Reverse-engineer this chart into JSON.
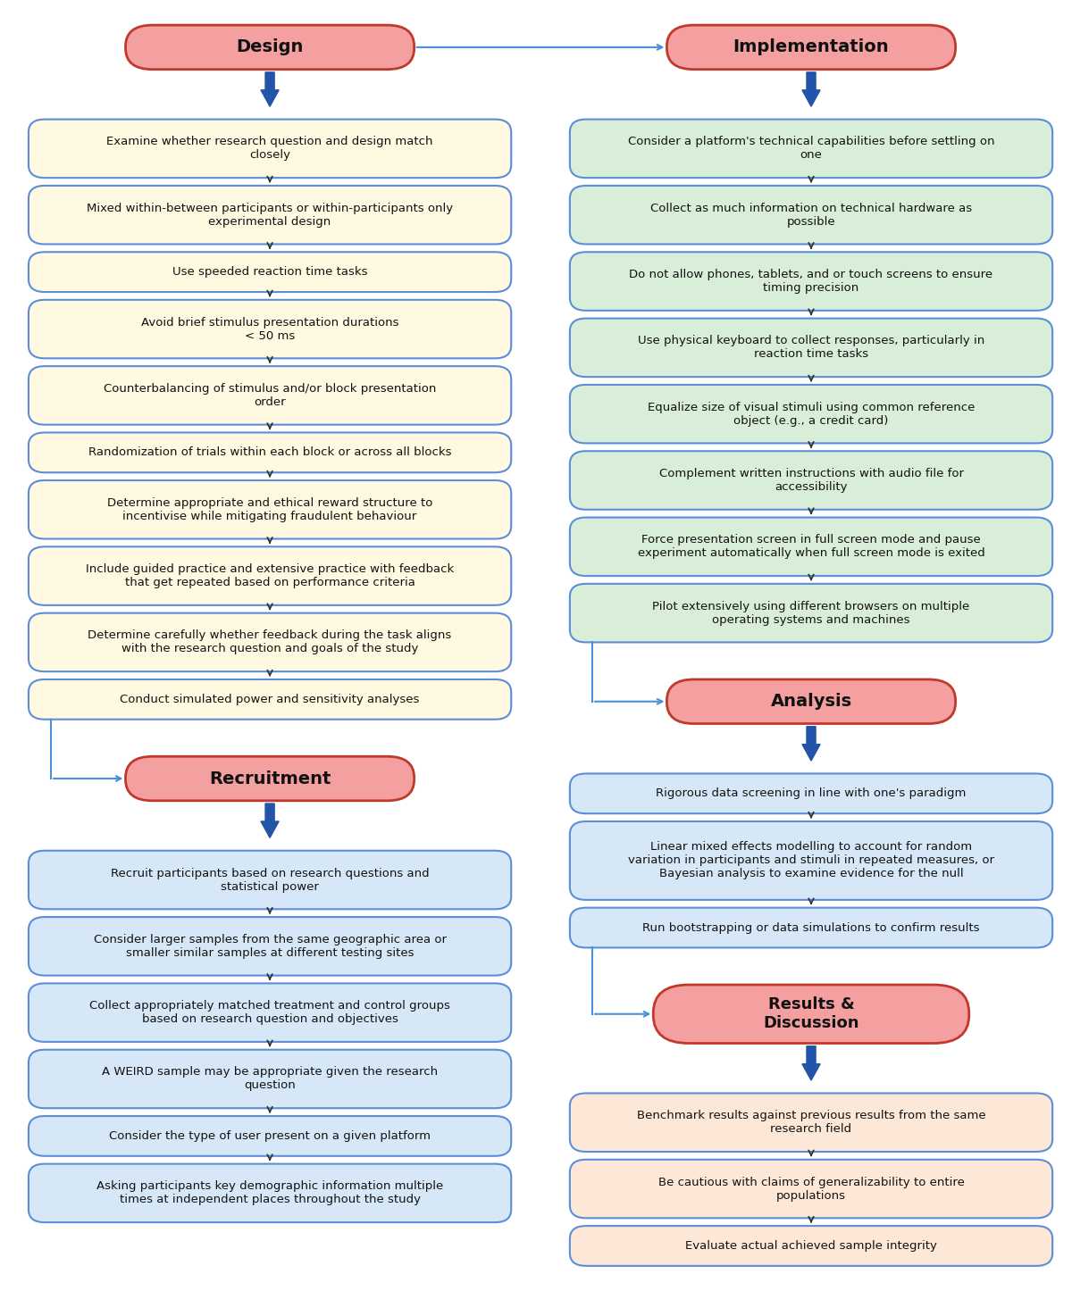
{
  "bg_color": "#ffffff",
  "header_fill": "#f4a0a0",
  "header_border": "#c0392b",
  "design_box_fill": "#fef9e0",
  "design_box_border": "#5b8dd9",
  "recruit_box_fill": "#d6e8f7",
  "recruit_box_border": "#5b8dd9",
  "impl_box_fill": "#d9eed9",
  "impl_box_border": "#5b8dd9",
  "analysis_box_fill": "#d6e8f7",
  "analysis_box_border": "#5b8dd9",
  "result_box_fill": "#fde8d8",
  "result_box_border": "#5b8dd9",
  "big_arrow_color": "#2255aa",
  "small_arrow_color": "#333333",
  "connector_color": "#4a90d9",
  "text_color": "#111111",
  "header_text_color": "#111111",
  "left_header": "Design",
  "right_header": "Implementation",
  "left_header2": "Recruitment",
  "right_header2": "Analysis",
  "right_header3": "Results &\nDiscussion",
  "design_boxes": [
    [
      "Examine whether research question and design match\nclosely",
      2
    ],
    [
      "Mixed within-between participants or within-participants only\nexperimental design",
      2
    ],
    [
      "Use speeded reaction time tasks",
      1
    ],
    [
      "Avoid brief stimulus presentation durations\n< 50 ms",
      2
    ],
    [
      "Counterbalancing of stimulus and/or block presentation\norder",
      2
    ],
    [
      "Randomization of trials within each block or across all blocks",
      1
    ],
    [
      "Determine appropriate and ethical reward structure to\nincentivise while mitigating fraudulent behaviour",
      2
    ],
    [
      "Include guided practice and extensive practice with feedback\nthat get repeated based on performance criteria",
      2
    ],
    [
      "Determine carefully whether feedback during the task aligns\nwith the research question and goals of the study",
      2
    ],
    [
      "Conduct simulated power and sensitivity analyses",
      1
    ]
  ],
  "recruit_boxes": [
    [
      "Recruit participants based on research questions and\nstatistical power",
      2
    ],
    [
      "Consider larger samples from the same geographic area or\nsmaller similar samples at different testing sites",
      2
    ],
    [
      "Collect appropriately matched treatment and control groups\nbased on research question and objectives",
      2
    ],
    [
      "A WEIRD sample may be appropriate given the research\nquestion",
      2
    ],
    [
      "Consider the type of user present on a given platform",
      1
    ],
    [
      "Asking participants key demographic information multiple\ntimes at independent places throughout the study",
      2
    ]
  ],
  "impl_boxes": [
    [
      "Consider a platform's technical capabilities before settling on\none",
      2
    ],
    [
      "Collect as much information on technical hardware as\npossible",
      2
    ],
    [
      "Do not allow phones, tablets, and or touch screens to ensure\ntiming precision",
      2
    ],
    [
      "Use physical keyboard to collect responses, particularly in\nreaction time tasks",
      2
    ],
    [
      "Equalize size of visual stimuli using common reference\nobject (e.g., a credit card)",
      2
    ],
    [
      "Complement written instructions with audio file for\naccessibility",
      2
    ],
    [
      "Force presentation screen in full screen mode and pause\nexperiment automatically when full screen mode is exited",
      2
    ],
    [
      "Pilot extensively using different browsers on multiple\noperating systems and machines",
      2
    ]
  ],
  "analysis_boxes": [
    [
      "Rigorous data screening in line with one's paradigm",
      1
    ],
    [
      "Linear mixed effects modelling to account for random\nvariation in participants and stimuli in repeated measures, or\nBayesian analysis to examine evidence for the null",
      3
    ],
    [
      "Run bootstrapping or data simulations to confirm results",
      1
    ]
  ],
  "result_boxes": [
    [
      "Benchmark results against previous results from the same\nresearch field",
      2
    ],
    [
      "Be cautious with claims of generalizability to entire\npopulations",
      2
    ],
    [
      "Evaluate actual achieved sample integrity",
      1
    ]
  ]
}
